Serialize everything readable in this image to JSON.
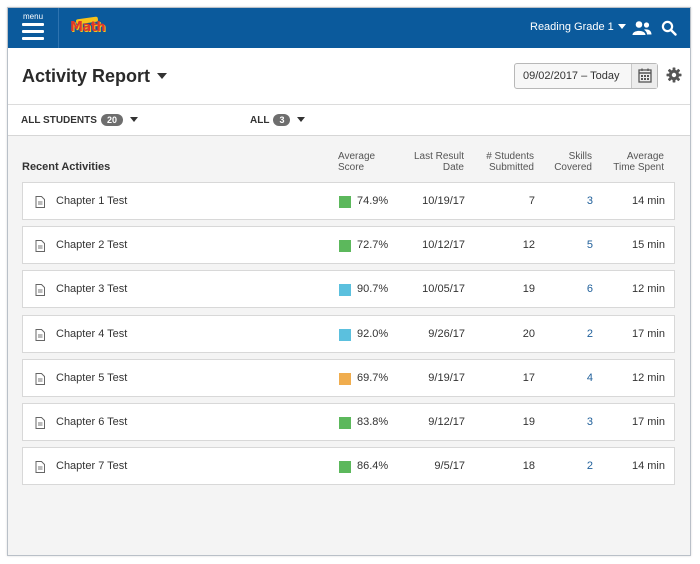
{
  "topbar": {
    "menu_label": "menu",
    "logo_text": "Math",
    "grade_label": "Reading Grade 1",
    "bar_color": "#0b5a9c"
  },
  "header": {
    "title": "Activity Report",
    "date_range": "09/02/2017 – Today"
  },
  "filters": {
    "students_label": "ALL STUDENTS",
    "students_count": "20",
    "groups_label": "ALL",
    "groups_count": "3"
  },
  "table": {
    "section_title": "Recent Activities",
    "columns": {
      "avg_score": "Average Score",
      "last_result": "Last Result Date",
      "students": "# Students Submitted",
      "skills": "Skills Covered",
      "time": "Average Time Spent"
    },
    "rows": [
      {
        "name": "Chapter 1 Test",
        "score": "74.9%",
        "score_color": "#5cb85c",
        "date": "10/19/17",
        "students": "7",
        "skills": "3",
        "time": "14 min"
      },
      {
        "name": "Chapter 2 Test",
        "score": "72.7%",
        "score_color": "#5cb85c",
        "date": "10/12/17",
        "students": "12",
        "skills": "5",
        "time": "15 min"
      },
      {
        "name": "Chapter 3 Test",
        "score": "90.7%",
        "score_color": "#5bc0de",
        "date": "10/05/17",
        "students": "19",
        "skills": "6",
        "time": "12 min"
      },
      {
        "name": "Chapter 4 Test",
        "score": "92.0%",
        "score_color": "#5bc0de",
        "date": "9/26/17",
        "students": "20",
        "skills": "2",
        "time": "17 min"
      },
      {
        "name": "Chapter 5 Test",
        "score": "69.7%",
        "score_color": "#f0ad4e",
        "date": "9/19/17",
        "students": "17",
        "skills": "4",
        "time": "12 min"
      },
      {
        "name": "Chapter 6 Test",
        "score": "83.8%",
        "score_color": "#5cb85c",
        "date": "9/12/17",
        "students": "19",
        "skills": "3",
        "time": "17 min"
      },
      {
        "name": "Chapter 7 Test",
        "score": "86.4%",
        "score_color": "#5cb85c",
        "date": "9/5/17",
        "students": "18",
        "skills": "2",
        "time": "14 min"
      }
    ]
  }
}
